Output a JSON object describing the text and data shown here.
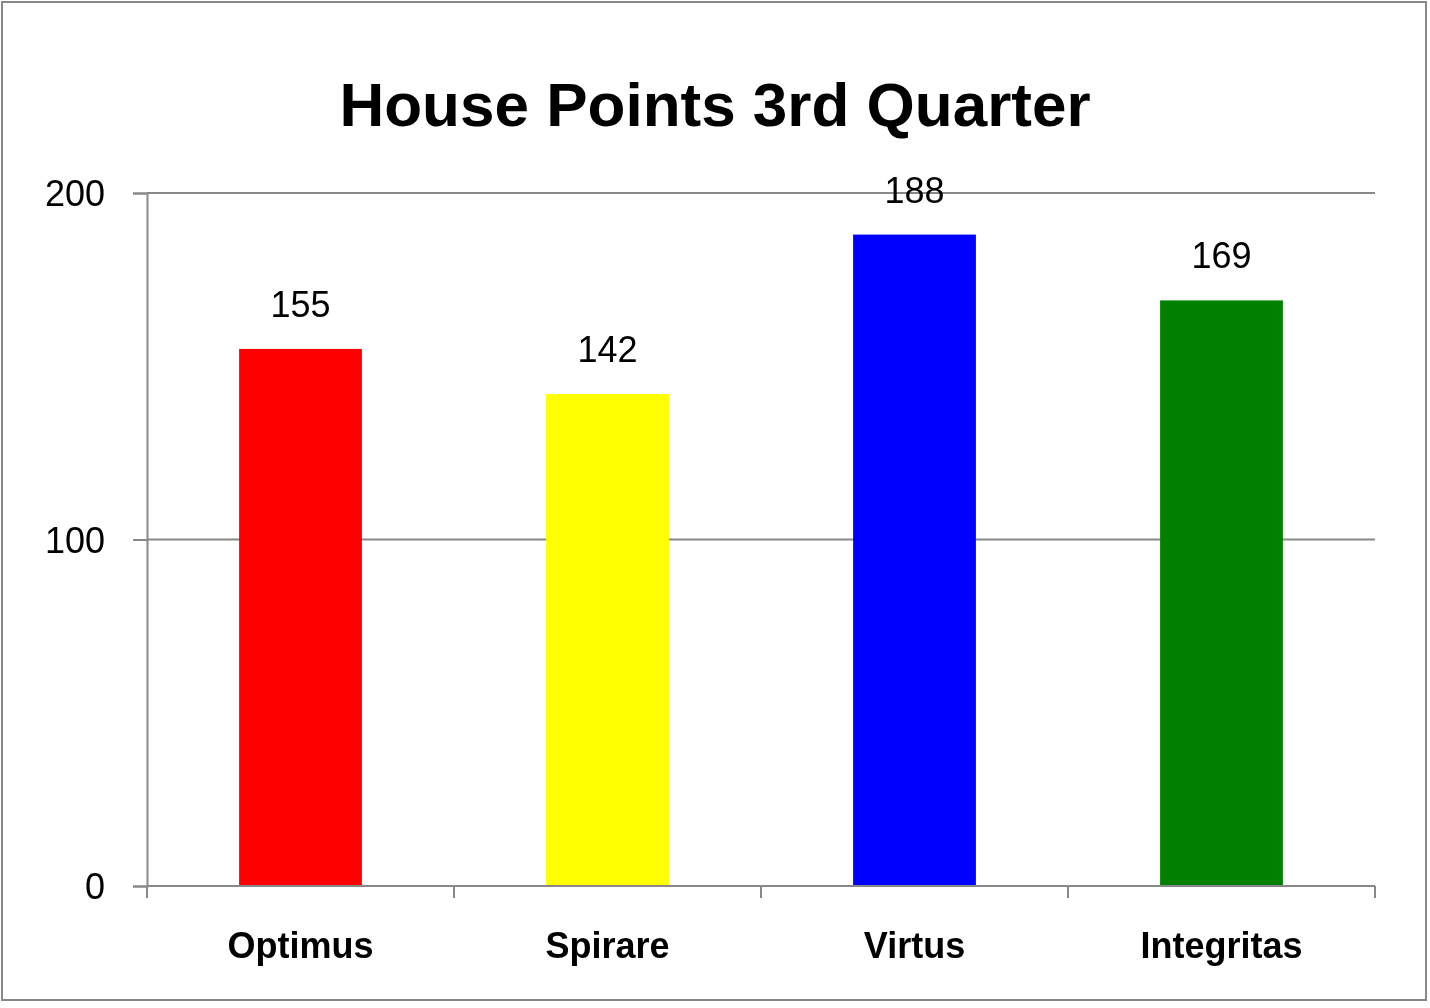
{
  "chart_data": {
    "type": "bar",
    "title": "House Points 3rd Quarter",
    "categories": [
      "Optimus",
      "Spirare",
      "Virtus",
      "Integritas"
    ],
    "values": [
      155,
      142,
      188,
      169
    ],
    "colors": [
      "#ff0000",
      "#ffff00",
      "#0000ff",
      "#008000"
    ],
    "ylim": [
      0,
      200
    ],
    "yticks": [
      0,
      100,
      200
    ],
    "grid": "y",
    "data_labels": true
  }
}
